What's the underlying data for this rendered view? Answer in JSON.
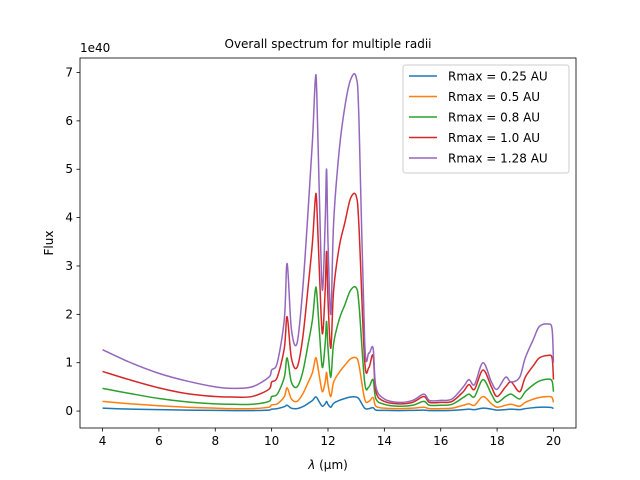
{
  "chart_data": {
    "type": "line",
    "title": "Overall spectrum for multiple radii",
    "xlabel_var": "λ",
    "xlabel_unit": "(μm)",
    "ylabel": "Flux",
    "y_offset_label": "1e40",
    "xlim": [
      3.2,
      20.8
    ],
    "ylim": [
      -0.35,
      7.3
    ],
    "xticks": [
      4,
      6,
      8,
      10,
      12,
      14,
      16,
      18,
      20
    ],
    "yticks": [
      0,
      1,
      2,
      3,
      4,
      5,
      6,
      7
    ],
    "grid": false,
    "legend_position": "top-right",
    "x": [
      4.0,
      5.0,
      6.0,
      7.0,
      8.0,
      8.6,
      9.3,
      9.9,
      10.0,
      10.2,
      10.45,
      10.55,
      10.7,
      10.9,
      11.1,
      11.3,
      11.45,
      11.55,
      11.6,
      11.7,
      11.8,
      11.9,
      11.95,
      12.0,
      12.1,
      12.2,
      12.4,
      12.6,
      12.8,
      13.0,
      13.1,
      13.3,
      13.45,
      13.6,
      13.7,
      14.0,
      14.5,
      15.0,
      15.4,
      15.6,
      16.0,
      16.4,
      16.8,
      17.0,
      17.2,
      17.5,
      17.8,
      18.0,
      18.3,
      18.5,
      18.8,
      19.0,
      19.3,
      19.5,
      19.8,
      19.95,
      20.0
    ],
    "series": [
      {
        "name": "Rmax = 0.25 AU",
        "color": "#1f77b4",
        "values": [
          0.06,
          0.04,
          0.03,
          0.02,
          0.015,
          0.01,
          0.01,
          0.02,
          0.04,
          0.05,
          0.09,
          0.12,
          0.06,
          0.05,
          0.09,
          0.16,
          0.22,
          0.29,
          0.28,
          0.18,
          0.1,
          0.15,
          0.2,
          0.14,
          0.08,
          0.16,
          0.22,
          0.26,
          0.29,
          0.29,
          0.25,
          0.06,
          0.05,
          0.07,
          0.02,
          0.015,
          0.01,
          0.015,
          0.02,
          0.01,
          0.01,
          0.015,
          0.03,
          0.04,
          0.03,
          0.06,
          0.04,
          0.02,
          0.03,
          0.04,
          0.03,
          0.05,
          0.07,
          0.08,
          0.08,
          0.07,
          0.05
        ]
      },
      {
        "name": "Rmax = 0.5 AU",
        "color": "#ff7f0e",
        "values": [
          0.2,
          0.15,
          0.11,
          0.08,
          0.06,
          0.05,
          0.05,
          0.08,
          0.13,
          0.15,
          0.3,
          0.48,
          0.25,
          0.2,
          0.35,
          0.6,
          0.8,
          1.08,
          1.05,
          0.7,
          0.4,
          0.6,
          0.8,
          0.55,
          0.3,
          0.6,
          0.8,
          0.95,
          1.08,
          1.1,
          0.95,
          0.25,
          0.2,
          0.28,
          0.1,
          0.06,
          0.05,
          0.06,
          0.08,
          0.05,
          0.05,
          0.06,
          0.12,
          0.15,
          0.12,
          0.3,
          0.15,
          0.08,
          0.12,
          0.14,
          0.1,
          0.18,
          0.25,
          0.28,
          0.3,
          0.28,
          0.18
        ]
      },
      {
        "name": "Rmax = 0.8 AU",
        "color": "#2ca02c",
        "values": [
          0.47,
          0.36,
          0.26,
          0.19,
          0.15,
          0.14,
          0.14,
          0.2,
          0.3,
          0.35,
          0.7,
          1.1,
          0.6,
          0.5,
          0.8,
          1.4,
          1.9,
          2.5,
          2.45,
          1.6,
          0.9,
          1.4,
          1.85,
          1.3,
          0.7,
          1.4,
          1.9,
          2.2,
          2.5,
          2.55,
          2.2,
          0.6,
          0.5,
          0.65,
          0.25,
          0.14,
          0.1,
          0.12,
          0.2,
          0.12,
          0.12,
          0.14,
          0.28,
          0.35,
          0.3,
          0.65,
          0.35,
          0.18,
          0.3,
          0.35,
          0.25,
          0.4,
          0.55,
          0.62,
          0.66,
          0.62,
          0.4
        ]
      },
      {
        "name": "Rmax = 1.0 AU",
        "color": "#d62728",
        "values": [
          0.82,
          0.64,
          0.48,
          0.36,
          0.3,
          0.29,
          0.3,
          0.45,
          0.6,
          0.7,
          1.3,
          1.95,
          1.1,
          0.9,
          1.5,
          2.6,
          3.5,
          4.4,
          4.3,
          2.8,
          1.6,
          2.5,
          3.3,
          2.3,
          1.3,
          2.5,
          3.4,
          3.9,
          4.4,
          4.45,
          3.8,
          1.05,
          0.9,
          1.15,
          0.4,
          0.2,
          0.15,
          0.18,
          0.3,
          0.18,
          0.18,
          0.2,
          0.4,
          0.55,
          0.45,
          0.85,
          0.5,
          0.3,
          0.5,
          0.6,
          0.4,
          0.7,
          0.95,
          1.1,
          1.15,
          1.1,
          0.65
        ]
      },
      {
        "name": "Rmax = 1.28 AU",
        "color": "#9467bd",
        "values": [
          1.27,
          1.0,
          0.78,
          0.62,
          0.5,
          0.47,
          0.5,
          0.7,
          0.85,
          1.0,
          1.9,
          3.05,
          1.7,
          1.4,
          2.5,
          4.2,
          5.6,
          6.85,
          6.6,
          4.3,
          2.5,
          3.9,
          5.0,
          3.5,
          2.0,
          3.9,
          5.4,
          6.3,
          6.85,
          6.9,
          6.0,
          1.45,
          1.2,
          1.3,
          0.5,
          0.25,
          0.18,
          0.22,
          0.35,
          0.22,
          0.22,
          0.25,
          0.5,
          0.65,
          0.55,
          1.0,
          0.6,
          0.45,
          0.7,
          0.6,
          0.7,
          1.1,
          1.5,
          1.75,
          1.8,
          1.7,
          1.0
        ]
      }
    ]
  }
}
